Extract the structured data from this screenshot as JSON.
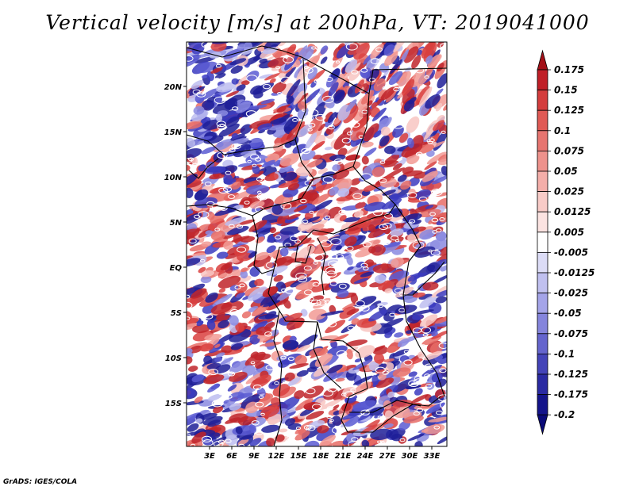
{
  "title": "Vertical velocity [m/s] at 200hPa, VT: 2019041000",
  "credit": "GrADS: IGES/COLA",
  "lat_labels": [
    "20N",
    "15N",
    "10N",
    "5N",
    "EQ",
    "5S",
    "10S",
    "15S"
  ],
  "lon_labels": [
    "3E",
    "6E",
    "9E",
    "12E",
    "15E",
    "18E",
    "21E",
    "24E",
    "27E",
    "30E",
    "33E"
  ],
  "colorbar": {
    "levels": [
      "0.175",
      "0.15",
      "0.125",
      "0.1",
      "0.075",
      "0.05",
      "0.025",
      "0.0125",
      "0.005",
      "-0.005",
      "-0.0125",
      "-0.025",
      "-0.05",
      "-0.075",
      "-0.1",
      "-0.125",
      "-0.175",
      "-0.2"
    ],
    "colors": [
      "#a31018",
      "#c01f27",
      "#d43d3d",
      "#e05a55",
      "#e77570",
      "#ee928c",
      "#f4aea9",
      "#f8cbc7",
      "#fbe3e1",
      "#ffffff",
      "#dcdcf6",
      "#c0c0ef",
      "#a4a4e8",
      "#8585dc",
      "#6565cd",
      "#4444b8",
      "#2a2aa2",
      "#14148a",
      "#0a0a78"
    ]
  },
  "palette": {
    "red": "#d9403e",
    "blue": "#4b4bd0",
    "white": "#ffffff",
    "coast": "#000000"
  }
}
